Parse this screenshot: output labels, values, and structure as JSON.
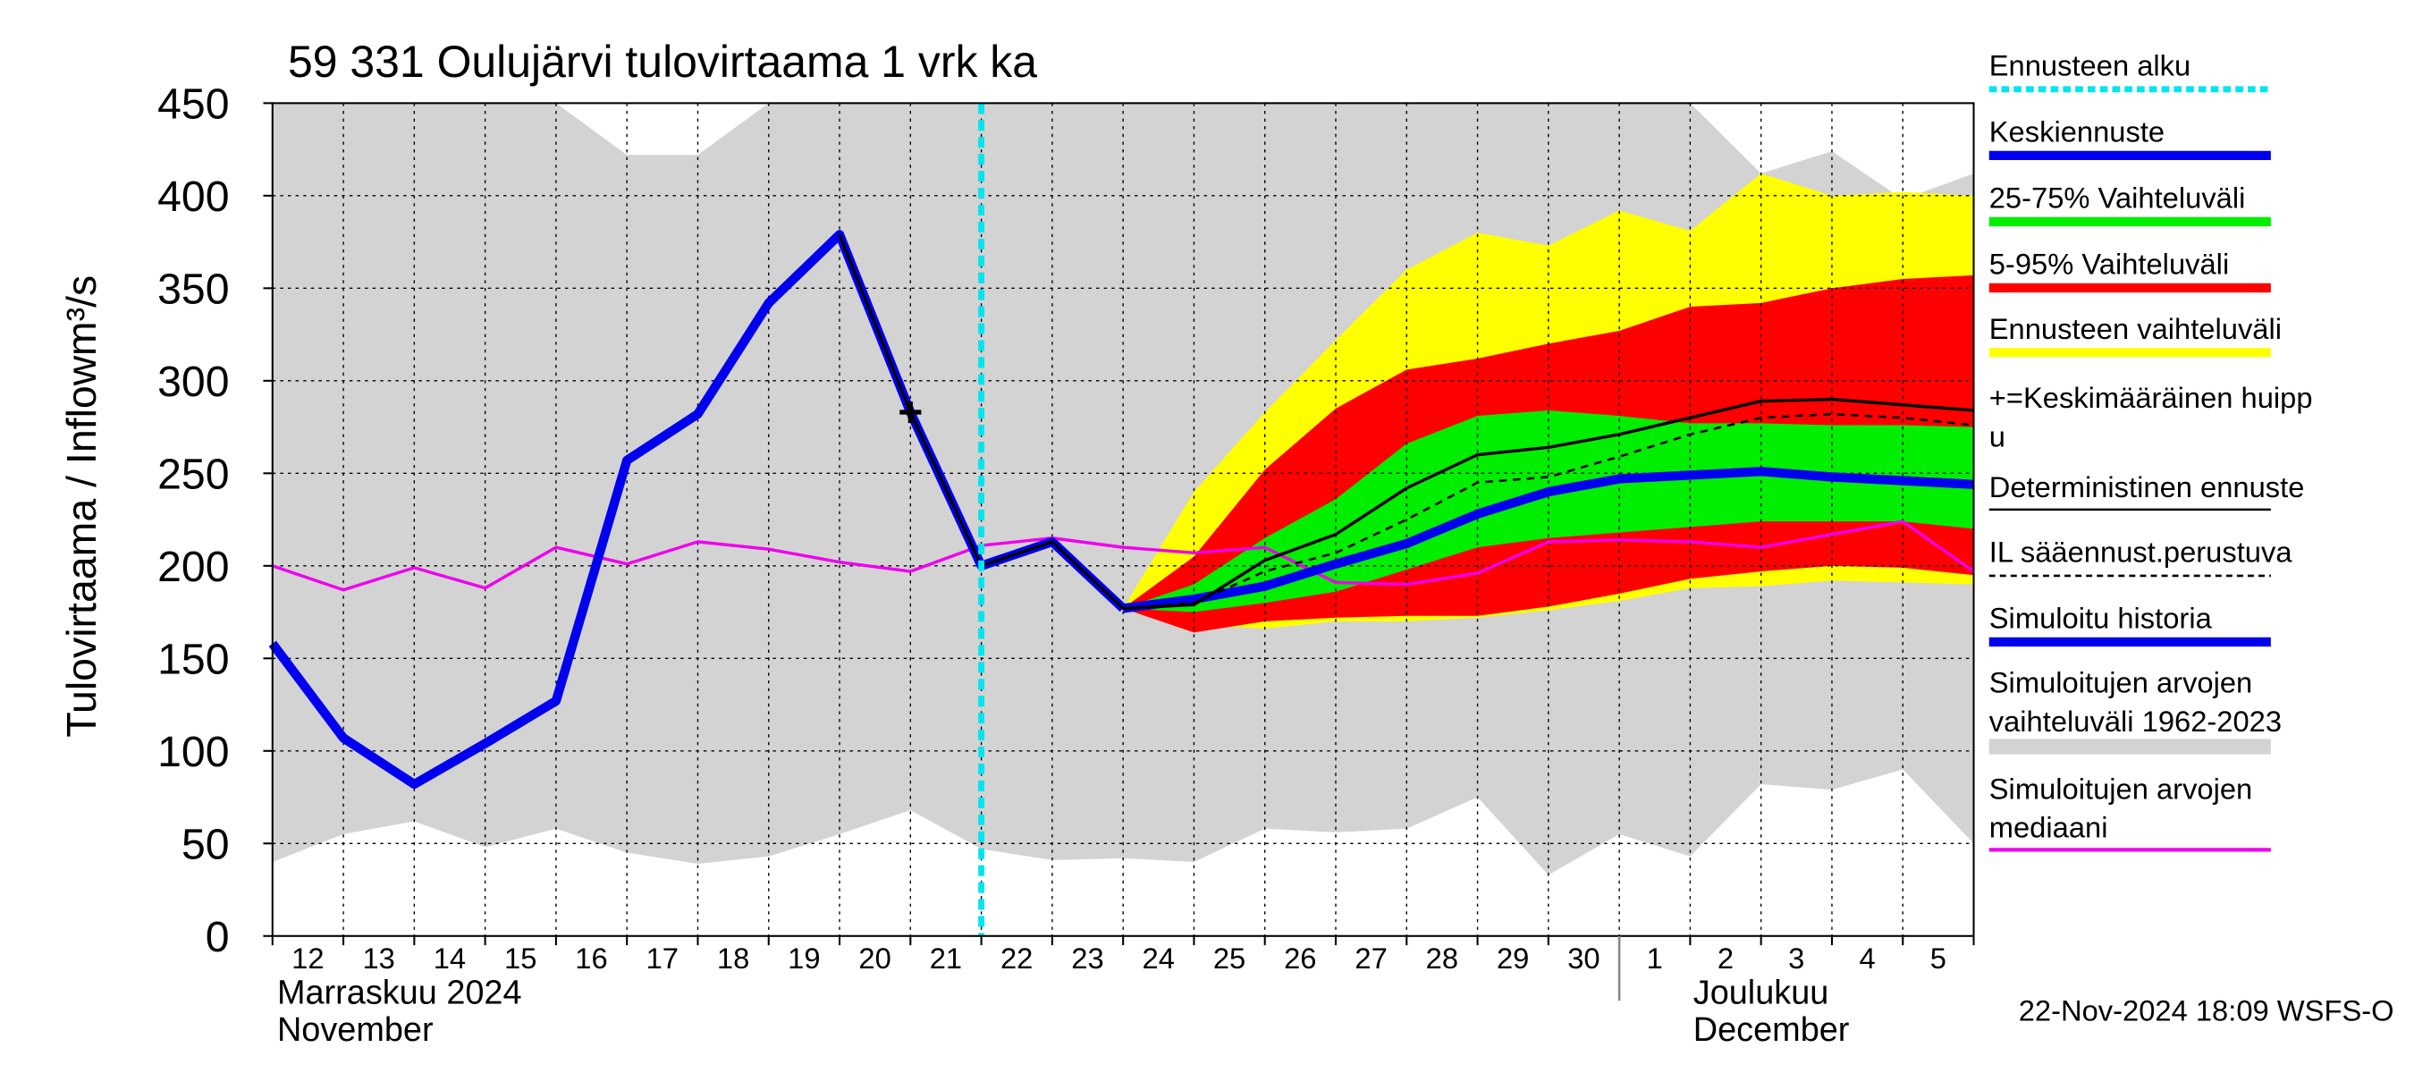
{
  "chart_data": {
    "type": "line",
    "title": "59 331 Oulujärvi tulovirtaama 1 vrk ka",
    "y_label": "Tulovirtaama / Inflow",
    "y_unit": "m³/s",
    "months": [
      {
        "lines": [
          "Marraskuu 2024",
          "November"
        ],
        "start": 0
      },
      {
        "lines": [
          "Joulukuu",
          "December"
        ],
        "start": 19
      }
    ],
    "footer": "22-Nov-2024 18:09 WSFS-O",
    "categories": [
      "12",
      "13",
      "14",
      "15",
      "16",
      "17",
      "18",
      "19",
      "20",
      "21",
      "22",
      "23",
      "24",
      "25",
      "26",
      "27",
      "28",
      "29",
      "30",
      "1",
      "2",
      "3",
      "4",
      "5",
      null
    ],
    "ylim": [
      0,
      450
    ],
    "yticks": [
      0,
      50,
      100,
      150,
      200,
      250,
      300,
      350,
      400,
      450
    ],
    "grid": true,
    "series": [
      {
        "name": [
          "Ennusteen alku"
        ],
        "kind": "vline",
        "color": "#00e5ee",
        "x": 10
      },
      {
        "name": [
          "Keskiennuste"
        ],
        "kind": "line",
        "color": "#0000ee",
        "width": 6,
        "values": [
          null,
          null,
          null,
          null,
          null,
          null,
          null,
          null,
          null,
          null,
          null,
          null,
          177,
          182,
          189,
          201,
          212,
          228,
          240,
          247,
          249,
          251,
          248,
          246,
          244
        ]
      },
      {
        "name": [
          "25-75% Vaihteluväli"
        ],
        "kind": "band",
        "color": "#00ee00",
        "low": [
          null,
          null,
          null,
          null,
          null,
          null,
          null,
          null,
          null,
          null,
          null,
          null,
          177,
          175,
          180,
          186,
          198,
          210,
          215,
          218,
          221,
          224,
          224,
          224,
          220
        ],
        "high": [
          null,
          null,
          null,
          null,
          null,
          null,
          null,
          null,
          null,
          null,
          null,
          null,
          177,
          190,
          215,
          236,
          266,
          281,
          284,
          281,
          277,
          277,
          276,
          276,
          275
        ]
      },
      {
        "name": [
          "5-95% Vaihteluväli"
        ],
        "kind": "band",
        "color": "#ff0000",
        "low": [
          null,
          null,
          null,
          null,
          null,
          null,
          null,
          null,
          null,
          null,
          null,
          null,
          177,
          164,
          170,
          172,
          173,
          173,
          178,
          185,
          193,
          197,
          200,
          199,
          195
        ],
        "high": [
          null,
          null,
          null,
          null,
          null,
          null,
          null,
          null,
          null,
          null,
          null,
          null,
          177,
          205,
          252,
          285,
          306,
          312,
          320,
          327,
          340,
          342,
          350,
          355,
          357
        ]
      },
      {
        "name": [
          "Ennusteen vaihteluväli"
        ],
        "kind": "band",
        "color": "#ffff00",
        "low": [
          null,
          null,
          null,
          null,
          null,
          null,
          null,
          null,
          null,
          null,
          null,
          null,
          177,
          168,
          166,
          170,
          170,
          172,
          176,
          181,
          188,
          189,
          192,
          191,
          190
        ],
        "high": [
          null,
          null,
          null,
          null,
          null,
          null,
          null,
          null,
          null,
          null,
          null,
          null,
          177,
          240,
          283,
          322,
          360,
          380,
          373,
          392,
          381,
          412,
          400,
          402,
          400
        ]
      },
      {
        "name": [
          "+=Keskimääräinen huipp",
          "u"
        ],
        "kind": "marker",
        "color": "#000000",
        "x": 9,
        "value": 283
      },
      {
        "name": [
          "Deterministinen ennuste"
        ],
        "kind": "line",
        "color": "#000000",
        "width": 2,
        "values": [
          null,
          null,
          null,
          null,
          null,
          null,
          null,
          null,
          379,
          283,
          200,
          213,
          177,
          179,
          203,
          217,
          242,
          260,
          264,
          271,
          280,
          289,
          290,
          287,
          284
        ]
      },
      {
        "name": [
          "IL sääennust.perustuva"
        ],
        "kind": "line",
        "color": "#000000",
        "width": 1.5,
        "dashed": true,
        "values": [
          null,
          null,
          null,
          null,
          null,
          null,
          null,
          null,
          null,
          null,
          null,
          null,
          177,
          180,
          197,
          207,
          225,
          245,
          248,
          259,
          271,
          280,
          282,
          280,
          276
        ]
      },
      {
        "name": [
          "Simuloitu historia"
        ],
        "kind": "line",
        "color": "#0000ee",
        "width": 6,
        "values": [
          158,
          107,
          82,
          104,
          127,
          257,
          282,
          342,
          379,
          283,
          200,
          213,
          177,
          null,
          null,
          null,
          null,
          null,
          null,
          null,
          null,
          null,
          null,
          null,
          null
        ]
      },
      {
        "name": [
          "Simuloitujen arvojen",
          "vaihteluväli 1962-2023"
        ],
        "kind": "band",
        "color": "#d3d3d3",
        "low": [
          40,
          55,
          62,
          48,
          58,
          45,
          39,
          43,
          55,
          68,
          47,
          41,
          42,
          40,
          58,
          56,
          58,
          75,
          33,
          55,
          43,
          82,
          79,
          90,
          50
        ],
        "high": [
          450,
          450,
          450,
          450,
          450,
          422,
          422,
          450,
          450,
          450,
          450,
          450,
          450,
          450,
          450,
          450,
          450,
          450,
          450,
          450,
          450,
          412,
          424,
          398,
          412
        ]
      },
      {
        "name": [
          "Simuloitujen arvojen",
          "mediaani"
        ],
        "kind": "line",
        "color": "#ee00ee",
        "width": 2,
        "values": [
          200,
          187,
          199,
          188,
          210,
          201,
          213,
          209,
          202,
          197,
          211,
          215,
          210,
          207,
          210,
          191,
          190,
          196,
          213,
          214,
          213,
          210,
          217,
          224,
          197
        ]
      }
    ]
  }
}
